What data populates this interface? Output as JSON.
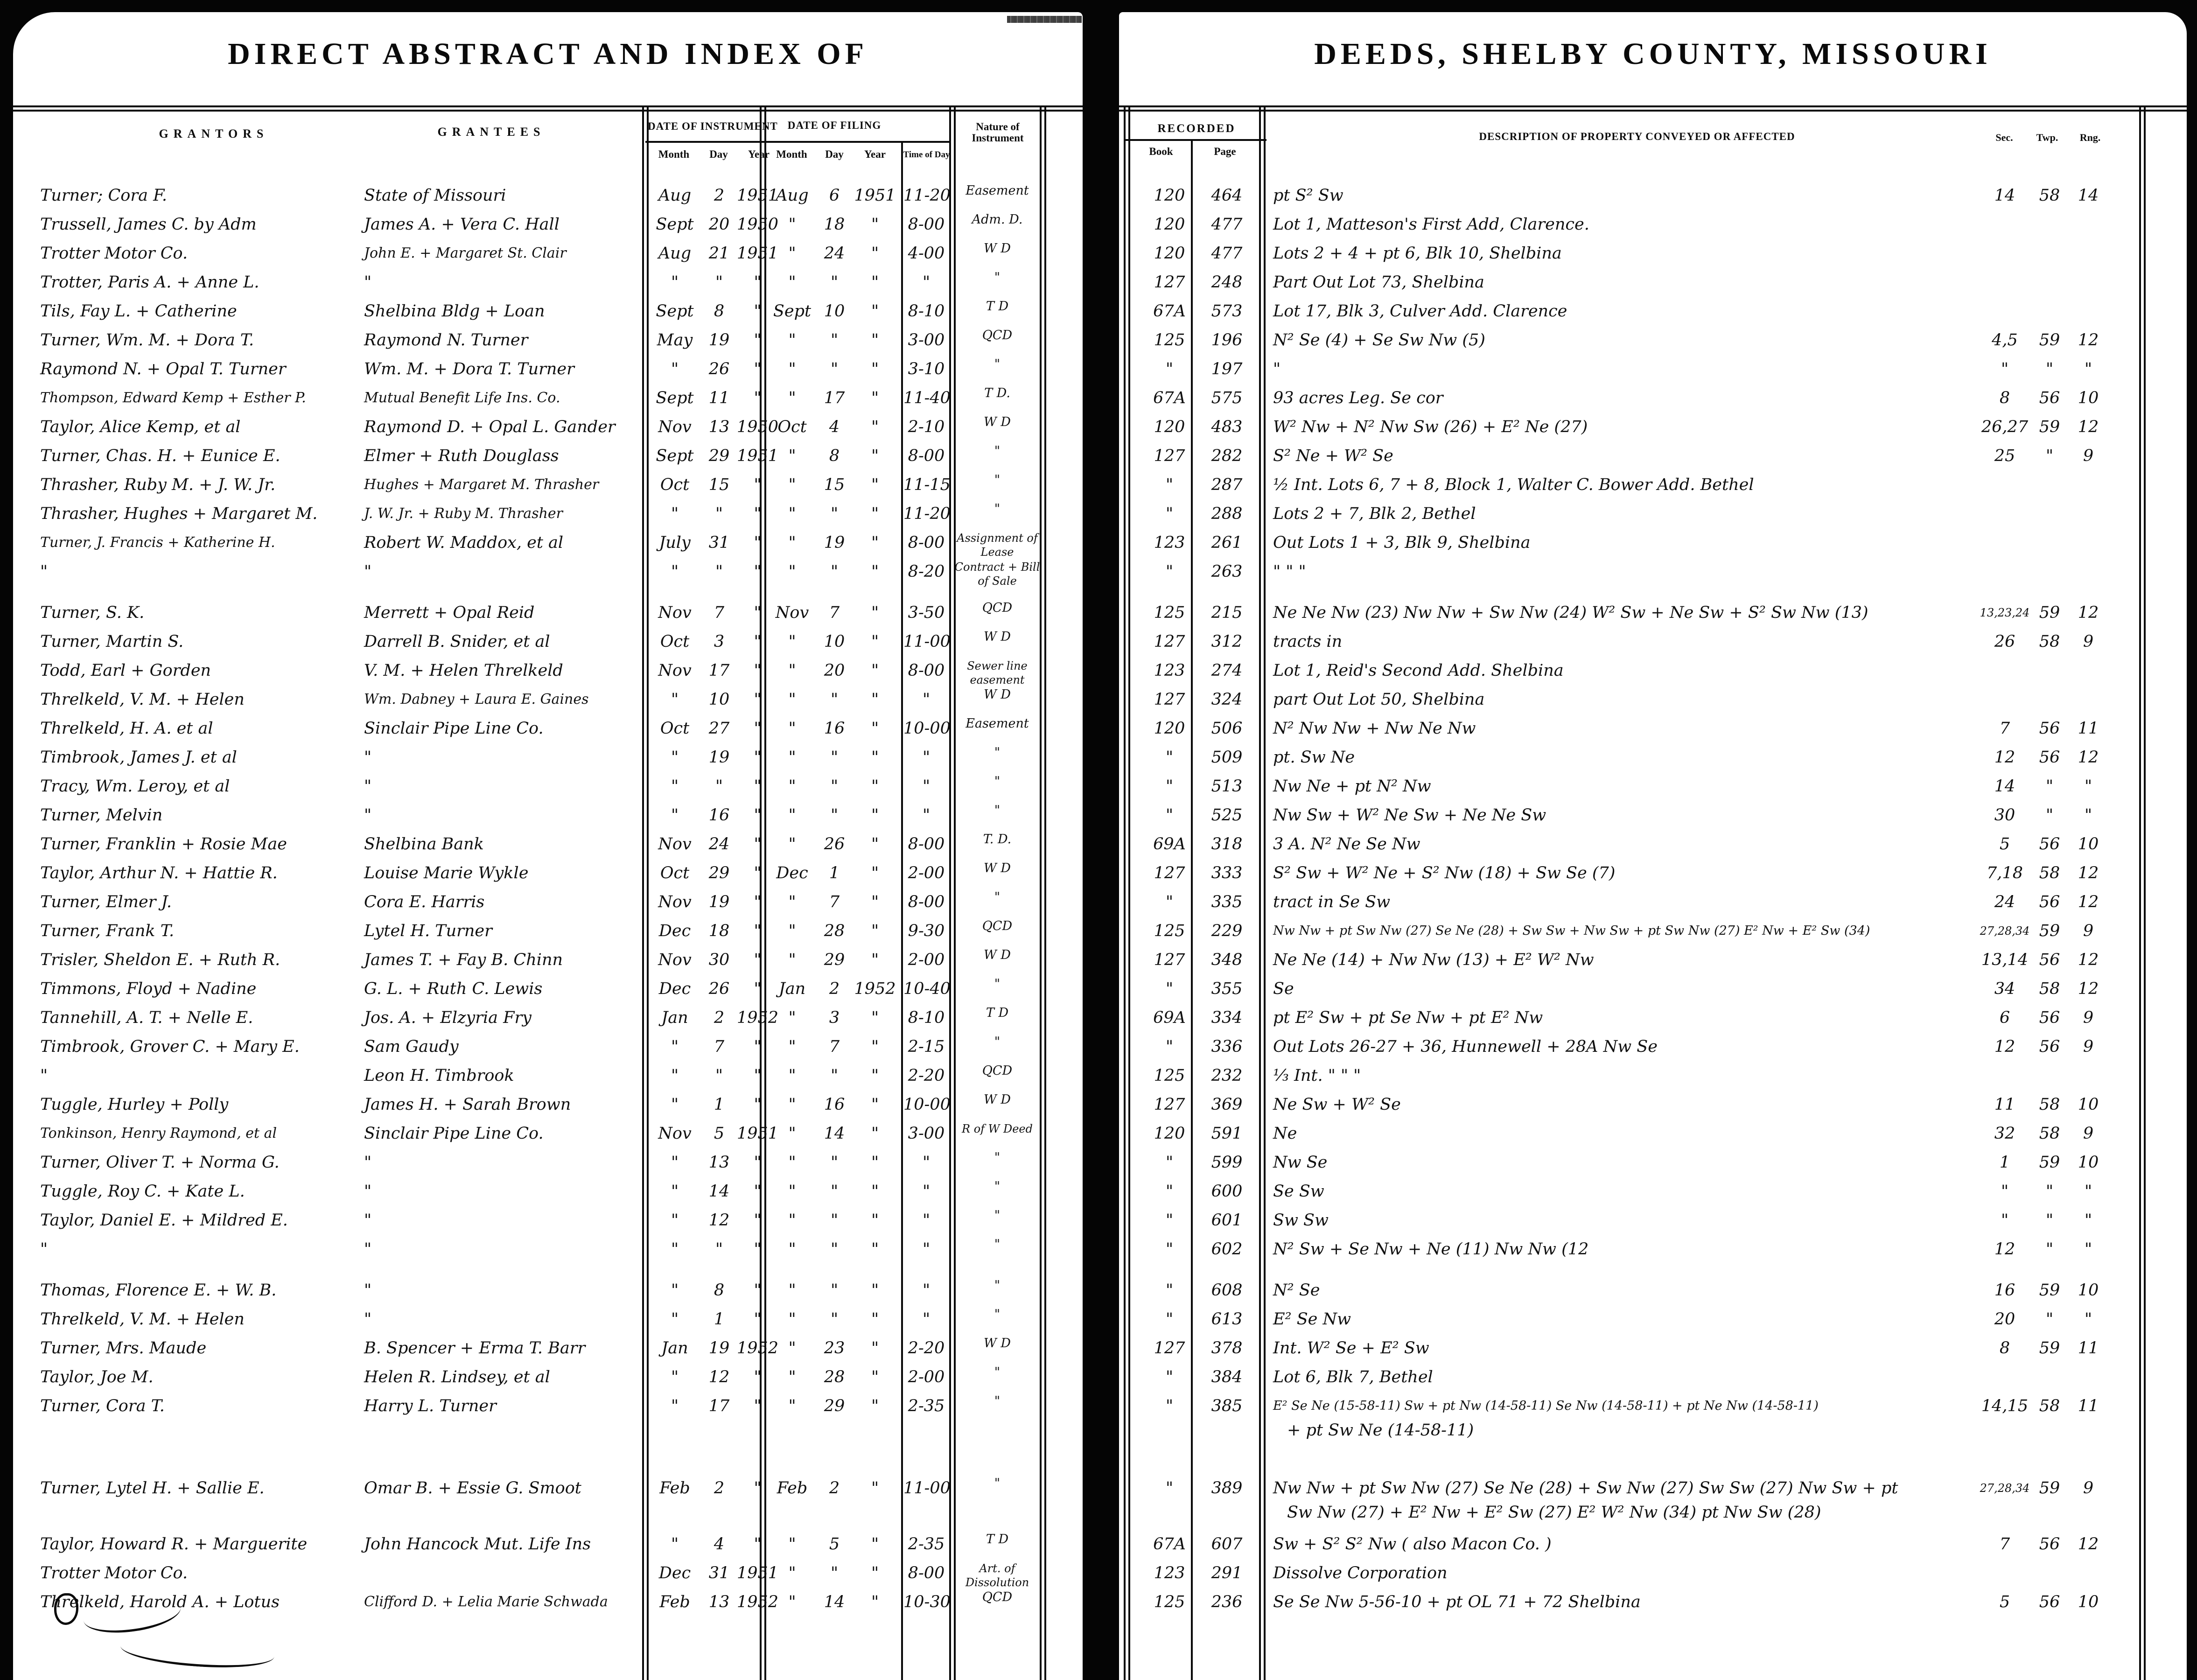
{
  "left_page": {
    "title": "DIRECT ABSTRACT AND INDEX OF",
    "headers": {
      "grantors": "GRANTORS",
      "grantees": "GRANTEES",
      "date_of_instrument": "DATE OF INSTRUMENT",
      "date_of_filing": "DATE OF FILING",
      "month": "Month",
      "day": "Day",
      "year": "Year",
      "time_of_day": "Time of Day",
      "nature_of_instrument": "Nature of Instrument"
    }
  },
  "right_page": {
    "title": "DEEDS, SHELBY COUNTY, MISSOURI",
    "headers": {
      "recorded": "RECORDED",
      "book": "Book",
      "page": "Page",
      "description": "DESCRIPTION OF PROPERTY CONVEYED OR AFFECTED",
      "sec": "Sec.",
      "twp": "Twp.",
      "rng": "Rng."
    }
  },
  "rows": [
    {
      "g1": "Turner; Cora F.",
      "g2": "State of Missouri",
      "im": "Aug",
      "id": "2",
      "iy": "1951",
      "fm": "Aug",
      "fd": "6",
      "fy": "1951",
      "t": "11-20",
      "nat": "Easement",
      "bk": "120",
      "pg": "464",
      "d": "pt S² Sw",
      "sec": "14",
      "twp": "58",
      "rng": "14"
    },
    {
      "g1": "Trussell, James C. by Adm",
      "g2": "James A. + Vera C. Hall",
      "im": "Sept",
      "id": "20",
      "iy": "1950",
      "fm": "\"",
      "fd": "18",
      "fy": "\"",
      "t": "8-00",
      "nat": "Adm. D.",
      "bk": "120",
      "pg": "477",
      "d": "Lot 1, Matteson's First Add, Clarence.",
      "sec": "",
      "twp": "",
      "rng": ""
    },
    {
      "g1": "Trotter Motor Co.",
      "g2": "John E. + Margaret St. Clair",
      "im": "Aug",
      "id": "21",
      "iy": "1951",
      "fm": "\"",
      "fd": "24",
      "fy": "\"",
      "t": "4-00",
      "nat": "W D",
      "bk": "120",
      "pg": "477",
      "d": "Lots 2 + 4 + pt 6, Blk 10, Shelbina",
      "sec": "",
      "twp": "",
      "rng": ""
    },
    {
      "g1": "Trotter, Paris A. + Anne L.",
      "g2": "\"",
      "im": "\"",
      "id": "\"",
      "iy": "\"",
      "fm": "\"",
      "fd": "\"",
      "fy": "\"",
      "t": "\"",
      "nat": "\"",
      "bk": "127",
      "pg": "248",
      "d": "Part Out Lot 73, Shelbina",
      "sec": "",
      "twp": "",
      "rng": ""
    },
    {
      "g1": "Tils, Fay L. + Catherine",
      "g2": "Shelbina Bldg + Loan",
      "im": "Sept",
      "id": "8",
      "iy": "\"",
      "fm": "Sept",
      "fd": "10",
      "fy": "\"",
      "t": "8-10",
      "nat": "T D",
      "bk": "67A",
      "pg": "573",
      "d": "Lot 17, Blk 3, Culver Add. Clarence",
      "sec": "",
      "twp": "",
      "rng": ""
    },
    {
      "g1": "Turner, Wm. M. + Dora T.",
      "g2": "Raymond N. Turner",
      "im": "May",
      "id": "19",
      "iy": "\"",
      "fm": "\"",
      "fd": "\"",
      "fy": "\"",
      "t": "3-00",
      "nat": "QCD",
      "bk": "125",
      "pg": "196",
      "d": "N² Se (4) + Se Sw Nw (5)",
      "sec": "4,5",
      "twp": "59",
      "rng": "12"
    },
    {
      "g1": "Raymond N. + Opal T. Turner",
      "g2": "Wm. M. + Dora T. Turner",
      "im": "\"",
      "id": "26",
      "iy": "\"",
      "fm": "\"",
      "fd": "\"",
      "fy": "\"",
      "t": "3-10",
      "nat": "\"",
      "bk": "\"",
      "pg": "197",
      "d": "\"",
      "sec": "\"",
      "twp": "\"",
      "rng": "\""
    },
    {
      "g1": "Thompson, Edward Kemp + Esther P.",
      "g2": "Mutual Benefit Life Ins. Co.",
      "im": "Sept",
      "id": "11",
      "iy": "\"",
      "fm": "\"",
      "fd": "17",
      "fy": "\"",
      "t": "11-40",
      "nat": "T D.",
      "bk": "67A",
      "pg": "575",
      "d": "93 acres Leg. Se cor",
      "sec": "8",
      "twp": "56",
      "rng": "10"
    },
    {
      "g1": "Taylor, Alice Kemp, et al",
      "g2": "Raymond D. + Opal L. Gander",
      "im": "Nov",
      "id": "13",
      "iy": "1950",
      "fm": "Oct",
      "fd": "4",
      "fy": "\"",
      "t": "2-10",
      "nat": "W D",
      "bk": "120",
      "pg": "483",
      "d": "W² Nw + N² Nw Sw (26) + E² Ne (27)",
      "sec": "26,27",
      "twp": "59",
      "rng": "12"
    },
    {
      "g1": "Turner, Chas. H. + Eunice E.",
      "g2": "Elmer + Ruth Douglass",
      "im": "Sept",
      "id": "29",
      "iy": "1951",
      "fm": "\"",
      "fd": "8",
      "fy": "\"",
      "t": "8-00",
      "nat": "\"",
      "bk": "127",
      "pg": "282",
      "d": "S² Ne + W² Se",
      "sec": "25",
      "twp": "\"",
      "rng": "9"
    },
    {
      "g1": "Thrasher, Ruby M. + J. W. Jr.",
      "g2": "Hughes + Margaret M. Thrasher",
      "im": "Oct",
      "id": "15",
      "iy": "\"",
      "fm": "\"",
      "fd": "15",
      "fy": "\"",
      "t": "11-15",
      "nat": "\"",
      "bk": "\"",
      "pg": "287",
      "d": "½ Int. Lots 6, 7 + 8, Block 1, Walter C. Bower Add. Bethel",
      "sec": "",
      "twp": "",
      "rng": ""
    },
    {
      "g1": "Thrasher, Hughes + Margaret M.",
      "g2": "J. W. Jr. + Ruby M. Thrasher",
      "im": "\"",
      "id": "\"",
      "iy": "\"",
      "fm": "\"",
      "fd": "\"",
      "fy": "\"",
      "t": "11-20",
      "nat": "\"",
      "bk": "\"",
      "pg": "288",
      "d": "Lots 2 + 7, Blk 2, Bethel",
      "sec": "",
      "twp": "",
      "rng": ""
    },
    {
      "g1": "Turner, J. Francis + Katherine H.",
      "g2": "Robert W. Maddox, et al",
      "im": "July",
      "id": "31",
      "iy": "\"",
      "fm": "\"",
      "fd": "19",
      "fy": "\"",
      "t": "8-00",
      "nat": "Assignment of Lease",
      "bk": "123",
      "pg": "261",
      "d": "Out Lots 1 + 3, Blk 9, Shelbina",
      "sec": "",
      "twp": "",
      "rng": ""
    },
    {
      "g1": "\"",
      "g2": "\"",
      "im": "\"",
      "id": "\"",
      "iy": "\"",
      "fm": "\"",
      "fd": "\"",
      "fy": "\"",
      "t": "8-20",
      "nat": "Contract + Bill of Sale",
      "bk": "\"",
      "pg": "263",
      "d": "\"      \"      \"",
      "sec": "",
      "twp": "",
      "rng": ""
    },
    {
      "g1": "Turner,  S. K.",
      "g2": "Merrett + Opal Reid",
      "im": "Nov",
      "id": "7",
      "iy": "\"",
      "fm": "Nov",
      "fd": "7",
      "fy": "\"",
      "t": "3-50",
      "nat": "QCD",
      "bk": "125",
      "pg": "215",
      "d": "Ne Ne Nw (23) Nw Nw + Sw Nw (24) W² Sw + Ne Sw + S² Sw Nw (13)",
      "sec": "13,23,24",
      "twp": "59",
      "rng": "12"
    },
    {
      "g1": "Turner, Martin S.",
      "g2": "Darrell B. Snider, et al",
      "im": "Oct",
      "id": "3",
      "iy": "\"",
      "fm": "\"",
      "fd": "10",
      "fy": "\"",
      "t": "11-00",
      "nat": "W D",
      "bk": "127",
      "pg": "312",
      "d": "tracts in",
      "sec": "26",
      "twp": "58",
      "rng": "9"
    },
    {
      "g1": "Todd, Earl + Gorden",
      "g2": "V. M. + Helen Threlkeld",
      "im": "Nov",
      "id": "17",
      "iy": "\"",
      "fm": "\"",
      "fd": "20",
      "fy": "\"",
      "t": "8-00",
      "nat": "Sewer line easement",
      "bk": "123",
      "pg": "274",
      "d": "Lot 1, Reid's Second Add.  Shelbina",
      "sec": "",
      "twp": "",
      "rng": ""
    },
    {
      "g1": "Threlkeld, V. M. + Helen",
      "g2": "Wm. Dabney + Laura E. Gaines",
      "im": "\"",
      "id": "10",
      "iy": "\"",
      "fm": "\"",
      "fd": "\"",
      "fy": "\"",
      "t": "\"",
      "nat": "W D",
      "bk": "127",
      "pg": "324",
      "d": "part Out Lot 50, Shelbina",
      "sec": "",
      "twp": "",
      "rng": ""
    },
    {
      "g1": "Threlkeld, H. A. et al",
      "g2": "Sinclair Pipe Line Co.",
      "im": "Oct",
      "id": "27",
      "iy": "\"",
      "fm": "\"",
      "fd": "16",
      "fy": "\"",
      "t": "10-00",
      "nat": "Easement",
      "bk": "120",
      "pg": "506",
      "d": "N² Nw Nw + Nw Ne Nw",
      "sec": "7",
      "twp": "56",
      "rng": "11"
    },
    {
      "g1": "Timbrook, James J. et al",
      "g2": "\"",
      "im": "\"",
      "id": "19",
      "iy": "\"",
      "fm": "\"",
      "fd": "\"",
      "fy": "\"",
      "t": "\"",
      "nat": "\"",
      "bk": "\"",
      "pg": "509",
      "d": "pt. Sw Ne",
      "sec": "12",
      "twp": "56",
      "rng": "12"
    },
    {
      "g1": "Tracy, Wm. Leroy, et al",
      "g2": "\"",
      "im": "\"",
      "id": "\"",
      "iy": "\"",
      "fm": "\"",
      "fd": "\"",
      "fy": "\"",
      "t": "\"",
      "nat": "\"",
      "bk": "\"",
      "pg": "513",
      "d": "Nw Ne + pt N² Nw",
      "sec": "14",
      "twp": "\"",
      "rng": "\""
    },
    {
      "g1": "Turner, Melvin",
      "g2": "\"",
      "im": "\"",
      "id": "16",
      "iy": "\"",
      "fm": "\"",
      "fd": "\"",
      "fy": "\"",
      "t": "\"",
      "nat": "\"",
      "bk": "\"",
      "pg": "525",
      "d": "Nw Sw + W² Ne Sw + Ne Ne Sw",
      "sec": "30",
      "twp": "\"",
      "rng": "\""
    },
    {
      "g1": "Turner, Franklin + Rosie Mae",
      "g2": "Shelbina Bank",
      "im": "Nov",
      "id": "24",
      "iy": "\"",
      "fm": "\"",
      "fd": "26",
      "fy": "\"",
      "t": "8-00",
      "nat": "T. D.",
      "bk": "69A",
      "pg": "318",
      "d": "3 A.  N² Ne Se Nw",
      "sec": "5",
      "twp": "56",
      "rng": "10"
    },
    {
      "g1": "Taylor, Arthur N. + Hattie R.",
      "g2": "Louise Marie Wykle",
      "im": "Oct",
      "id": "29",
      "iy": "\"",
      "fm": "Dec",
      "fd": "1",
      "fy": "\"",
      "t": "2-00",
      "nat": "W D",
      "bk": "127",
      "pg": "333",
      "d": "S² Sw  + W² Ne + S² Nw (18) + Sw Se (7)",
      "sec": "7,18",
      "twp": "58",
      "rng": "12"
    },
    {
      "g1": "Turner, Elmer J.",
      "g2": "Cora E. Harris",
      "im": "Nov",
      "id": "19",
      "iy": "\"",
      "fm": "\"",
      "fd": "7",
      "fy": "\"",
      "t": "8-00",
      "nat": "\"",
      "bk": "\"",
      "pg": "335",
      "d": "tract in Se Sw",
      "sec": "24",
      "twp": "56",
      "rng": "12"
    },
    {
      "g1": "Turner, Frank T.",
      "g2": "Lytel H. Turner",
      "im": "Dec",
      "id": "18",
      "iy": "\"",
      "fm": "\"",
      "fd": "28",
      "fy": "\"",
      "t": "9-30",
      "nat": "QCD",
      "bk": "125",
      "pg": "229",
      "d": "Nw Nw + pt Sw Nw (27) Se Ne (28) + Sw Sw + Nw Sw + pt Sw Nw (27) E² Nw + E² Sw (34)",
      "sec": "27,28,34",
      "twp": "59",
      "rng": "9"
    },
    {
      "g1": "Trisler, Sheldon E. + Ruth R.",
      "g2": "James T. + Fay B. Chinn",
      "im": "Nov",
      "id": "30",
      "iy": "\"",
      "fm": "\"",
      "fd": "29",
      "fy": "\"",
      "t": "2-00",
      "nat": "W D",
      "bk": "127",
      "pg": "348",
      "d": "Ne Ne (14) + Nw Nw (13)  + E² W² Nw",
      "sec": "13,14",
      "twp": "56",
      "rng": "12"
    },
    {
      "g1": "Timmons, Floyd + Nadine",
      "g2": "G. L. + Ruth C. Lewis",
      "im": "Dec",
      "id": "26",
      "iy": "\"",
      "fm": "Jan",
      "fd": "2",
      "fy": "1952",
      "t": "10-40",
      "nat": "\"",
      "bk": "\"",
      "pg": "355",
      "d": "Se",
      "sec": "34",
      "twp": "58",
      "rng": "12"
    },
    {
      "g1": "Tannehill, A. T. + Nelle E.",
      "g2": "Jos. A. + Elzyria Fry",
      "im": "Jan",
      "id": "2",
      "iy": "1952",
      "fm": "\"",
      "fd": "3",
      "fy": "\"",
      "t": "8-10",
      "nat": "T D",
      "bk": "69A",
      "pg": "334",
      "d": "pt E² Sw + pt Se Nw + pt E² Nw",
      "sec": "6",
      "twp": "56",
      "rng": "9"
    },
    {
      "g1": "Timbrook, Grover C. + Mary E.",
      "g2": "Sam Gaudy",
      "im": "\"",
      "id": "7",
      "iy": "\"",
      "fm": "\"",
      "fd": "7",
      "fy": "\"",
      "t": "2-15",
      "nat": "\"",
      "bk": "\"",
      "pg": "336",
      "d": "Out Lots 26-27 + 36, Hunnewell + 28A Nw Se",
      "sec": "12",
      "twp": "56",
      "rng": "9"
    },
    {
      "g1": "\"",
      "g2": "Leon H. Timbrook",
      "im": "\"",
      "id": "\"",
      "iy": "\"",
      "fm": "\"",
      "fd": "\"",
      "fy": "\"",
      "t": "2-20",
      "nat": "QCD",
      "bk": "125",
      "pg": "232",
      "d": "⅓ Int. \"       \"       \"",
      "sec": "",
      "twp": "",
      "rng": ""
    },
    {
      "g1": "Tuggle, Hurley + Polly",
      "g2": "James H. + Sarah Brown",
      "im": "\"",
      "id": "1",
      "iy": "\"",
      "fm": "\"",
      "fd": "16",
      "fy": "\"",
      "t": "10-00",
      "nat": "W D",
      "bk": "127",
      "pg": "369",
      "d": "Ne Sw + W² Se",
      "sec": "11",
      "twp": "58",
      "rng": "10"
    },
    {
      "g1": "Tonkinson, Henry Raymond, et al",
      "g2": "Sinclair Pipe Line Co.",
      "im": "Nov",
      "id": "5",
      "iy": "1951",
      "fm": "\"",
      "fd": "14",
      "fy": "\"",
      "t": "3-00",
      "nat": "R of W Deed",
      "bk": "120",
      "pg": "591",
      "d": "Ne",
      "sec": "32",
      "twp": "58",
      "rng": "9"
    },
    {
      "g1": "Turner, Oliver T. + Norma G.",
      "g2": "\"",
      "im": "\"",
      "id": "13",
      "iy": "\"",
      "fm": "\"",
      "fd": "\"",
      "fy": "\"",
      "t": "\"",
      "nat": "\"",
      "bk": "\"",
      "pg": "599",
      "d": "Nw Se",
      "sec": "1",
      "twp": "59",
      "rng": "10"
    },
    {
      "g1": "Tuggle, Roy C. + Kate L.",
      "g2": "\"",
      "im": "\"",
      "id": "14",
      "iy": "\"",
      "fm": "\"",
      "fd": "\"",
      "fy": "\"",
      "t": "\"",
      "nat": "\"",
      "bk": "\"",
      "pg": "600",
      "d": "Se Sw",
      "sec": "\"",
      "twp": "\"",
      "rng": "\""
    },
    {
      "g1": "Taylor, Daniel E. + Mildred E.",
      "g2": "\"",
      "im": "\"",
      "id": "12",
      "iy": "\"",
      "fm": "\"",
      "fd": "\"",
      "fy": "\"",
      "t": "\"",
      "nat": "\"",
      "bk": "\"",
      "pg": "601",
      "d": "Sw Sw",
      "sec": "\"",
      "twp": "\"",
      "rng": "\""
    },
    {
      "g1": "\"",
      "g2": "\"",
      "im": "\"",
      "id": "\"",
      "iy": "\"",
      "fm": "\"",
      "fd": "\"",
      "fy": "\"",
      "t": "\"",
      "nat": "\"",
      "bk": "\"",
      "pg": "602",
      "d": "N² Sw + Se Nw + Ne (11)    Nw Nw (12",
      "sec": "12",
      "twp": "\"",
      "rng": "\""
    },
    {
      "g1": "Thomas, Florence E. + W. B.",
      "g2": "\"",
      "im": "\"",
      "id": "8",
      "iy": "\"",
      "fm": "\"",
      "fd": "\"",
      "fy": "\"",
      "t": "\"",
      "nat": "\"",
      "bk": "\"",
      "pg": "608",
      "d": "N² Se",
      "sec": "16",
      "twp": "59",
      "rng": "10"
    },
    {
      "g1": "Threlkeld, V. M. + Helen",
      "g2": "\"",
      "im": "\"",
      "id": "1",
      "iy": "\"",
      "fm": "\"",
      "fd": "\"",
      "fy": "\"",
      "t": "\"",
      "nat": "\"",
      "bk": "\"",
      "pg": "613",
      "d": "E² Se Nw",
      "sec": "20",
      "twp": "\"",
      "rng": "\""
    },
    {
      "g1": "Turner,  Mrs. Maude",
      "g2": "B. Spencer + Erma T. Barr",
      "im": "Jan",
      "id": "19",
      "iy": "1952",
      "fm": "\"",
      "fd": "23",
      "fy": "\"",
      "t": "2-20",
      "nat": "W D",
      "bk": "127",
      "pg": "378",
      "d": "Int. W² Se + E² Sw",
      "sec": "8",
      "twp": "59",
      "rng": "11"
    },
    {
      "g1": "Taylor,  Joe M.",
      "g2": "Helen R. Lindsey, et al",
      "im": "\"",
      "id": "12",
      "iy": "\"",
      "fm": "\"",
      "fd": "28",
      "fy": "\"",
      "t": "2-00",
      "nat": "\"",
      "bk": "\"",
      "pg": "384",
      "d": "Lot 6,  Blk 7,  Bethel",
      "sec": "",
      "twp": "",
      "rng": ""
    },
    {
      "g1": "Turner, Cora T.",
      "g2": "Harry L. Turner",
      "im": "\"",
      "id": "17",
      "iy": "\"",
      "fm": "\"",
      "fd": "29",
      "fy": "\"",
      "t": "2-35",
      "nat": "\"",
      "bk": "\"",
      "pg": "385",
      "d": "E² Se Ne (15-58-11) Sw + pt Nw (14-58-11) Se Nw (14-58-11) + pt Ne Nw (14-58-11)",
      "d2": "+ pt Sw Ne (14-58-11)",
      "sec": "14,15",
      "twp": "58",
      "rng": "11"
    },
    {
      "g1": "Turner, Lytel H. + Sallie E.",
      "g2": "Omar B. + Essie G. Smoot",
      "im": "Feb",
      "id": "2",
      "iy": "\"",
      "fm": "Feb",
      "fd": "2",
      "fy": "\"",
      "t": "11-00",
      "nat": "\"",
      "bk": "\"",
      "pg": "389",
      "d": "Nw Nw + pt Sw Nw (27) Se Ne (28) + Sw Nw (27) Sw Sw (27) Nw Sw + pt",
      "d2": "Sw Nw (27) + E² Nw + E² Sw (27)  E² W² Nw (34)  pt Nw Sw (28)",
      "sec": "27,28,34",
      "twp": "59",
      "rng": "9"
    },
    {
      "g1": "Taylor, Howard R. + Marguerite",
      "g2": "John Hancock Mut. Life Ins",
      "im": "\"",
      "id": "4",
      "iy": "\"",
      "fm": "\"",
      "fd": "5",
      "fy": "\"",
      "t": "2-35",
      "nat": "T D",
      "bk": "67A",
      "pg": "607",
      "d": "Sw + S² S² Nw  ( also Macon Co. )",
      "sec": "7",
      "twp": "56",
      "rng": "12"
    },
    {
      "g1": "Trotter Motor Co.",
      "g2": "",
      "im": "Dec",
      "id": "31",
      "iy": "1951",
      "fm": "\"",
      "fd": "\"",
      "fy": "\"",
      "t": "8-00",
      "nat": "Art. of Dissolution",
      "bk": "123",
      "pg": "291",
      "d": "Dissolve Corporation",
      "sec": "",
      "twp": "",
      "rng": ""
    },
    {
      "g1": "Threlkeld, Harold A. + Lotus",
      "g2": "Clifford D. + Lelia Marie Schwada",
      "im": "Feb",
      "id": "13",
      "iy": "1952",
      "fm": "\"",
      "fd": "14",
      "fy": "\"",
      "t": "10-30",
      "nat": "QCD",
      "bk": "125",
      "pg": "236",
      "d": "Se Se Nw  5-56-10 + pt OL 71 + 72   Shelbina",
      "sec": "5",
      "twp": "56",
      "rng": "10"
    }
  ]
}
